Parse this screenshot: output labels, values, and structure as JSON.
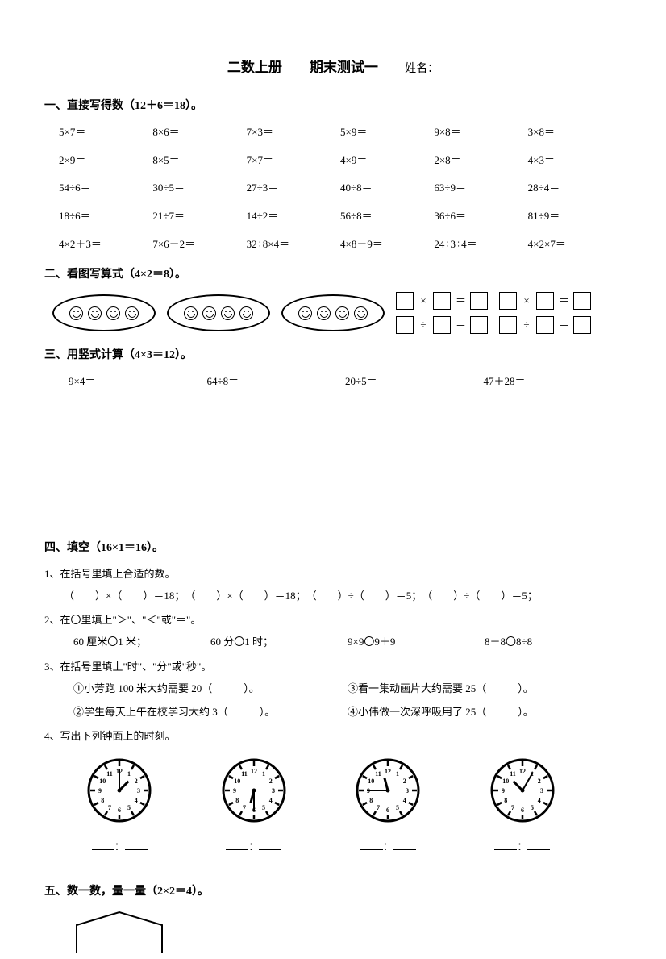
{
  "title": {
    "main": "二数上册　　期末测试一",
    "name_label": "姓名："
  },
  "section1": {
    "heading": "一、直接写得数（12＋6＝18）。",
    "rows": [
      [
        "5×7＝",
        "8×6＝",
        "7×3＝",
        "5×9＝",
        "9×8＝",
        "3×8＝"
      ],
      [
        "2×9＝",
        "8×5＝",
        "7×7＝",
        "4×9＝",
        "2×8＝",
        "4×3＝"
      ],
      [
        "54÷6＝",
        "30÷5＝",
        "27÷3＝",
        "40÷8＝",
        "63÷9＝",
        "28÷4＝"
      ],
      [
        "18÷6＝",
        "21÷7＝",
        "14÷2＝",
        "56÷8＝",
        "36÷6＝",
        "81÷9＝"
      ],
      [
        "4×2＋3＝",
        "7×6－2＝",
        "32÷8×4＝",
        "4×8－9＝",
        "24÷3÷4＝",
        "4×2×7＝"
      ]
    ]
  },
  "section2": {
    "heading": "二、看图写算式（4×2＝8）。",
    "oval_count": 3,
    "smileys_per_oval": 4,
    "ops": {
      "mul": "×",
      "div": "÷",
      "eq": "＝"
    }
  },
  "section3": {
    "heading": "三、用竖式计算（4×3＝12）。",
    "items": [
      "9×4＝",
      "64÷8＝",
      "20÷5＝",
      "47＋28＝"
    ]
  },
  "section4": {
    "heading": "四、填空（16×1＝16）。",
    "q1": {
      "label": "1、在括号里填上合适的数。",
      "text": "（　　）×（　　）＝18；　（　　）×（　　）＝18；　（　　）÷（　　）＝5；　（　　）÷（　　）＝5；"
    },
    "q2": {
      "label": "2、在〇里填上\"＞\"、\"＜\"或\"＝\"。",
      "items": [
        "60 厘米〇1 米；",
        "60 分〇1 时；",
        "9×9〇9＋9",
        "8－8〇8÷8"
      ]
    },
    "q3": {
      "label": "3、在括号里填上\"时\"、\"分\"或\"秒\"。",
      "left": [
        "①小芳跑 100 米大约需要 20（　　　）。",
        "②学生每天上午在校学习大约 3（　　　）。"
      ],
      "right": [
        "③看一集动画片大约需要 25（　　　）。",
        "④小伟做一次深呼吸用了 25（　　　）。"
      ]
    },
    "q4": {
      "label": "4、写出下列钟面上的时刻。",
      "clocks": [
        {
          "hour_angle": 45,
          "minute_angle": 0
        },
        {
          "hour_angle": 195,
          "minute_angle": 180
        },
        {
          "hour_angle": -15,
          "minute_angle": -90
        },
        {
          "hour_angle": -45,
          "minute_angle": 30
        }
      ],
      "sep": "："
    }
  },
  "section5": {
    "heading": "五、数一数，量一量（2×2＝4）。"
  },
  "colors": {
    "fg": "#000000",
    "bg": "#ffffff"
  }
}
